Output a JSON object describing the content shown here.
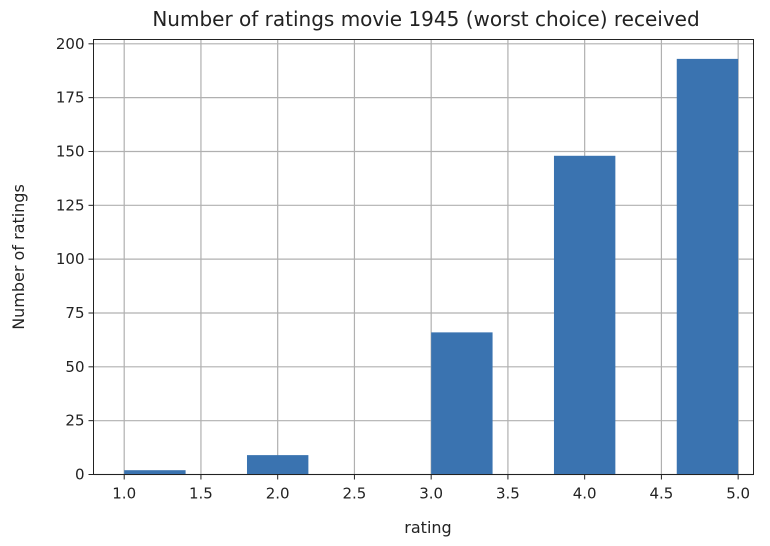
{
  "chart_data": {
    "type": "bar",
    "title": "Number of ratings movie 1945 (worst choice) received",
    "xlabel": "rating",
    "ylabel": "Number of ratings",
    "xlim": [
      0.8,
      5.1
    ],
    "ylim": [
      0,
      202
    ],
    "xticks": [
      1.0,
      1.5,
      2.0,
      2.5,
      3.0,
      3.5,
      4.0,
      4.5,
      5.0
    ],
    "xtick_labels": [
      "1.0",
      "1.5",
      "2.0",
      "2.5",
      "3.0",
      "3.5",
      "4.0",
      "4.5",
      "5.0"
    ],
    "yticks": [
      0,
      25,
      50,
      75,
      100,
      125,
      150,
      175,
      200
    ],
    "ytick_labels": [
      "0",
      "25",
      "50",
      "75",
      "100",
      "125",
      "150",
      "175",
      "200"
    ],
    "grid": true,
    "bar_color": "#3a73b0",
    "bars": [
      {
        "x_start": 1.0,
        "x_end": 1.4,
        "value": 2
      },
      {
        "x_start": 1.8,
        "x_end": 2.2,
        "value": 9
      },
      {
        "x_start": 3.0,
        "x_end": 3.4,
        "value": 66
      },
      {
        "x_start": 3.8,
        "x_end": 4.2,
        "value": 148
      },
      {
        "x_start": 4.6,
        "x_end": 5.0,
        "value": 193
      }
    ]
  }
}
